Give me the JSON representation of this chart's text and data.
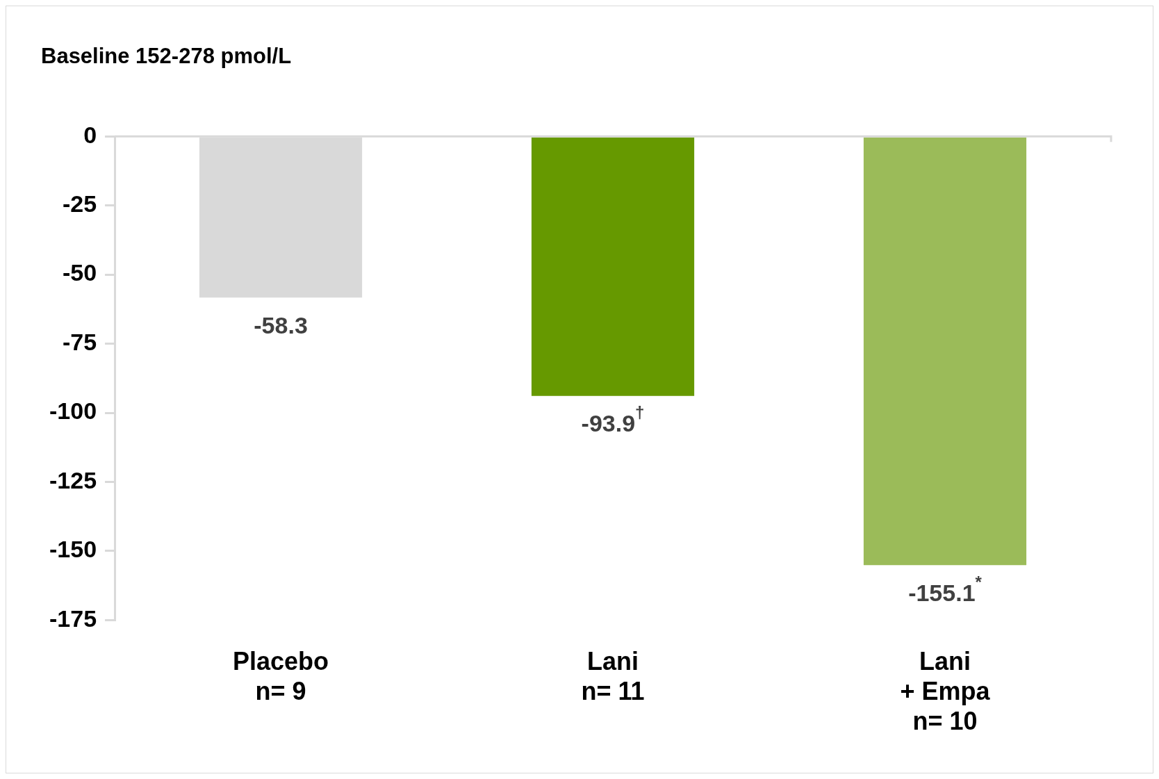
{
  "chart_data": {
    "type": "bar",
    "title": "Baseline 152-278 pmol/L",
    "categories": [
      "Placebo\nn= 9",
      "Lani\nn= 11",
      "Lani\n+ Empa\nn= 10"
    ],
    "values": [
      -58.3,
      -93.9,
      -155.1
    ],
    "colors": [
      "#d9d9d9",
      "#669900",
      "#9bbb59"
    ],
    "value_labels": [
      "-58.3",
      "-93.9$^{†}$",
      "-155.1$^{*}$"
    ],
    "ylim": [
      -175,
      0
    ],
    "yticks": [
      0,
      -25,
      -50,
      -75,
      -100,
      -125,
      -150,
      -175
    ],
    "grid": false,
    "legend": false
  }
}
